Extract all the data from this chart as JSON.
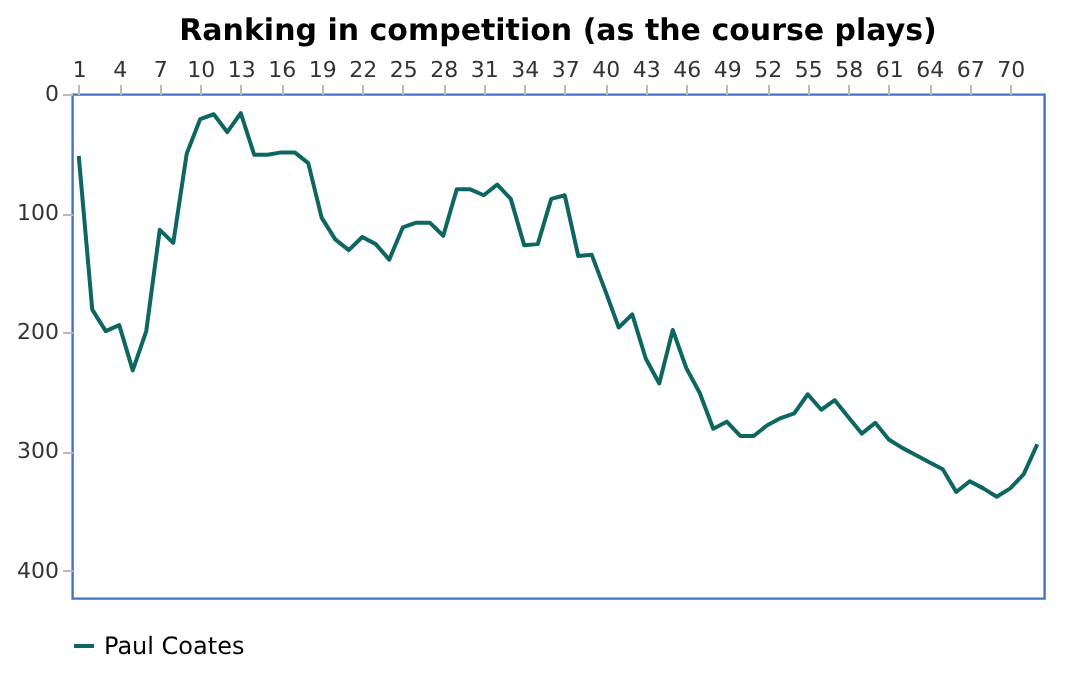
{
  "chart_data": {
    "type": "line",
    "title": "Ranking in competition (as the course plays)",
    "x": [
      1,
      2,
      3,
      4,
      5,
      6,
      7,
      8,
      9,
      10,
      11,
      12,
      13,
      14,
      15,
      16,
      17,
      18,
      19,
      20,
      21,
      22,
      23,
      24,
      25,
      26,
      27,
      28,
      29,
      30,
      31,
      32,
      33,
      34,
      35,
      36,
      37,
      38,
      39,
      40,
      41,
      42,
      43,
      44,
      45,
      46,
      47,
      48,
      49,
      50,
      51,
      52,
      53,
      54,
      55,
      56,
      57,
      58,
      59,
      60,
      61,
      62,
      63,
      64,
      65,
      66,
      67,
      68,
      69,
      70,
      71,
      72
    ],
    "series": [
      {
        "name": "Paul Coates",
        "color": "#0e6660",
        "values": [
          52,
          181,
          199,
          194,
          232,
          199,
          114,
          125,
          50,
          21,
          17,
          32,
          16,
          51,
          51,
          49,
          49,
          58,
          104,
          122,
          131,
          120,
          126,
          139,
          112,
          108,
          108,
          119,
          80,
          80,
          85,
          76,
          88,
          127,
          126,
          88,
          85,
          136,
          135,
          165,
          196,
          185,
          222,
          243,
          198,
          230,
          251,
          281,
          275,
          287,
          287,
          278,
          272,
          268,
          252,
          265,
          257,
          271,
          285,
          276,
          290,
          297,
          303,
          309,
          315,
          334,
          325,
          331,
          338,
          331,
          319,
          294
        ]
      }
    ],
    "xlim": [
      0.5,
      72.5
    ],
    "xticks": [
      1,
      4,
      7,
      10,
      13,
      16,
      19,
      22,
      25,
      28,
      31,
      34,
      37,
      40,
      43,
      46,
      49,
      52,
      55,
      58,
      61,
      64,
      67,
      70
    ],
    "ylim": [
      423,
      0
    ],
    "yticks": [
      0,
      100,
      200,
      300,
      400
    ],
    "grid": false,
    "legend": "bottom",
    "marker": "none",
    "line_style": "solid"
  }
}
